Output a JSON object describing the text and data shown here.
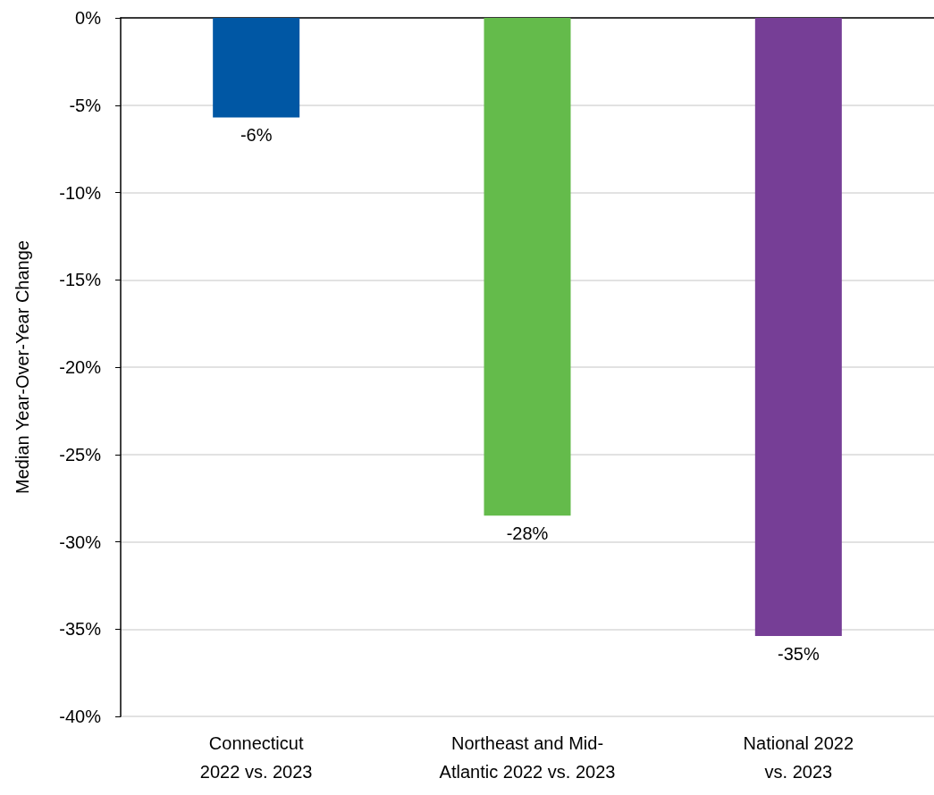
{
  "chart_data": {
    "type": "bar",
    "ylabel": "Median Year-Over-Year Change",
    "categories": [
      "Connecticut 2022 vs. 2023",
      "Northeast and Mid-Atlantic 2022 vs. 2023",
      "National 2022 vs. 2023"
    ],
    "values": [
      -5.7,
      -28.5,
      -35.4
    ],
    "colors": [
      "#0057a4",
      "#64bb4b",
      "#763e96"
    ],
    "value_labels": [
      "-6%",
      "-28%",
      "-35%"
    ],
    "ylim": [
      -40,
      0
    ],
    "yticks": [
      {
        "value": -40,
        "label": "-40%"
      },
      {
        "value": -35,
        "label": "-35%"
      },
      {
        "value": -30,
        "label": "-30%"
      },
      {
        "value": -25,
        "label": "-25%"
      },
      {
        "value": -20,
        "label": "-20%"
      },
      {
        "value": -15,
        "label": "-15%"
      },
      {
        "value": -10,
        "label": "-10%"
      },
      {
        "value": -5,
        "label": "-5%"
      },
      {
        "value": 0,
        "label": "0%"
      }
    ],
    "grid": "y"
  }
}
